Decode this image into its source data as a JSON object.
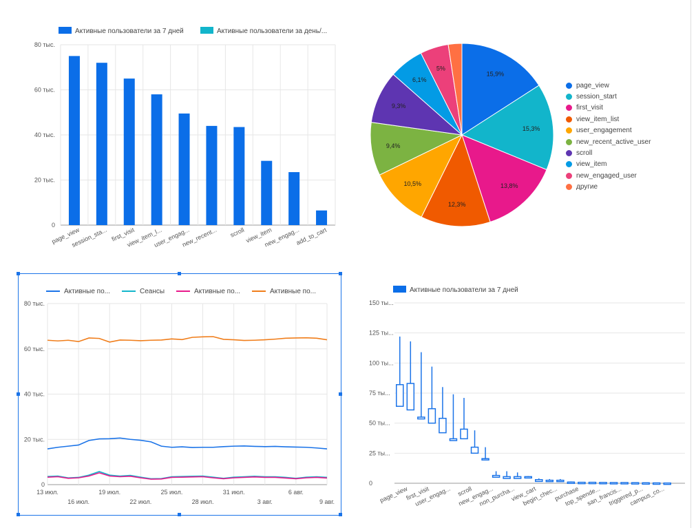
{
  "chart_data": [
    {
      "type": "bar",
      "legend": [
        "Активные пользователи за 7 дней",
        "Активные пользователи за день/..."
      ],
      "legend_colors": [
        "#0b6ee8",
        "#12b5cb"
      ],
      "categories": [
        "page_view",
        "session_sta...",
        "first_visit",
        "view_item_l...",
        "user_engag...",
        "new_recent...",
        "scroll",
        "view_item",
        "new_engag...",
        "add_to_cart"
      ],
      "series": [
        {
          "name": "Активные пользователи за 7 дней",
          "values": [
            75000,
            72000,
            65000,
            58000,
            49500,
            44000,
            43500,
            28500,
            23500,
            6500
          ]
        }
      ],
      "yticks": [
        "0",
        "20 тыс.",
        "40 тыс.",
        "60 тыс.",
        "80 тыс."
      ],
      "ylim": [
        0,
        80000
      ],
      "grid": true,
      "legend_position": "top"
    },
    {
      "type": "pie",
      "labels": [
        "page_view",
        "session_start",
        "first_visit",
        "view_item_list",
        "user_engagement",
        "new_recent_active_user",
        "scroll",
        "view_item",
        "new_engaged_user",
        "другие"
      ],
      "values": [
        15.9,
        15.3,
        13.8,
        12.3,
        10.5,
        9.4,
        9.3,
        6.1,
        5.0,
        2.4
      ],
      "slice_labels": [
        "15,9%",
        "15,3%",
        "13,8%",
        "12,3%",
        "10,5%",
        "9,4%",
        "9,3%",
        "6,1%",
        "5%",
        ""
      ],
      "colors": [
        "#0b6ee8",
        "#12b5cb",
        "#e8198b",
        "#f05a00",
        "#ffa600",
        "#7cb342",
        "#5e35b1",
        "#039be5",
        "#ec407a",
        "#ff7043"
      ],
      "legend_position": "right"
    },
    {
      "type": "line",
      "legend": [
        "Активные по...",
        "Сеансы",
        "Активные по...",
        "Активные по..."
      ],
      "x_ticks_top": [
        "13 июл.",
        "19 июл.",
        "25 июл.",
        "31 июл.",
        "6 авг."
      ],
      "x_ticks_bottom": [
        "16 июл.",
        "22 июл.",
        "28 июл.",
        "3 авг.",
        "9 авг."
      ],
      "x": [
        "13 июл.",
        "14 июл.",
        "15 июл.",
        "16 июл.",
        "17 июл.",
        "18 июл.",
        "19 июл.",
        "20 июл.",
        "21 июл.",
        "22 июл.",
        "23 июл.",
        "24 июл.",
        "25 июл.",
        "26 июл.",
        "27 июл.",
        "28 июл.",
        "29 июл.",
        "30 июл.",
        "31 июл.",
        "1 авг.",
        "2 авг.",
        "3 авг.",
        "4 авг.",
        "5 авг.",
        "6 авг.",
        "7 авг.",
        "8 авг.",
        "9 авг."
      ],
      "series": [
        {
          "color": "#1a73e8",
          "values": [
            15800,
            16500,
            17000,
            17500,
            19500,
            20200,
            20300,
            20600,
            20000,
            19600,
            18900,
            17000,
            16500,
            16700,
            16400,
            16500,
            16500,
            16800,
            17000,
            17100,
            16900,
            16800,
            16900,
            16700,
            16600,
            16500,
            16200,
            15800
          ]
        },
        {
          "color": "#12b5cb",
          "values": [
            3600,
            3800,
            3000,
            3200,
            4200,
            5800,
            4200,
            3800,
            4100,
            3300,
            2600,
            2700,
            3500,
            3600,
            3700,
            3800,
            3300,
            2800,
            3300,
            3500,
            3700,
            3500,
            3500,
            3200,
            2800,
            3300,
            3500,
            3200
          ]
        },
        {
          "color": "#e8198b",
          "values": [
            3300,
            3500,
            2800,
            3000,
            3800,
            5200,
            3800,
            3500,
            3700,
            3000,
            2400,
            2500,
            3200,
            3300,
            3400,
            3500,
            3000,
            2600,
            3000,
            3200,
            3400,
            3200,
            3200,
            2900,
            2600,
            3000,
            3200,
            2900
          ]
        },
        {
          "color": "#f07d1a",
          "values": [
            63800,
            63500,
            63800,
            63200,
            64800,
            64600,
            63000,
            63900,
            63800,
            63600,
            63800,
            63900,
            64400,
            64100,
            65100,
            65300,
            65400,
            64200,
            64000,
            63700,
            63800,
            64000,
            64300,
            64700,
            64800,
            64900,
            64700,
            64000
          ]
        }
      ],
      "yticks": [
        "0",
        "20 тыс.",
        "40 тыс.",
        "60 тыс.",
        "80 тыс."
      ],
      "ylim": [
        0,
        80000
      ],
      "grid": true,
      "legend_position": "top"
    },
    {
      "type": "candlestick",
      "legend": [
        "Активные пользователи за 7 дней"
      ],
      "legend_colors": [
        "#0b6ee8"
      ],
      "categories": [
        "page_view",
        "first_visit",
        "user_engag...",
        "scroll",
        "new_engag...",
        "non_purcha...",
        "view_cart",
        "begin_chec...",
        "purchase",
        "top_spende...",
        "san_francis...",
        "triggered_p...",
        "campus_co..."
      ],
      "boxes": [
        {
          "high": 122000,
          "q3": 82000,
          "q1": 64000,
          "low": 64000
        },
        {
          "high": 118000,
          "q3": 83000,
          "q1": 61000,
          "low": 61000
        },
        {
          "high": 109000,
          "q3": 55000,
          "q1": 53500,
          "low": 53500
        },
        {
          "high": 97000,
          "q3": 62000,
          "q1": 50000,
          "low": 50000
        },
        {
          "high": 80000,
          "q3": 54000,
          "q1": 42000,
          "low": 42000
        },
        {
          "high": 74000,
          "q3": 37000,
          "q1": 35500,
          "low": 35500
        },
        {
          "high": 71000,
          "q3": 45000,
          "q1": 37000,
          "low": 37000
        },
        {
          "high": 44000,
          "q3": 30000,
          "q1": 25000,
          "low": 25000
        },
        {
          "high": 30000,
          "q3": 20500,
          "q1": 19500,
          "low": 19500
        },
        {
          "high": 10000,
          "q3": 6500,
          "q1": 5000,
          "low": 5000
        },
        {
          "high": 10000,
          "q3": 5500,
          "q1": 4000,
          "low": 4000
        },
        {
          "high": 9000,
          "q3": 5500,
          "q1": 4000,
          "low": 4000
        },
        {
          "high": 6000,
          "q3": 5500,
          "q1": 4500,
          "low": 4500
        },
        {
          "high": 4000,
          "q3": 3000,
          "q1": 1500,
          "low": 1500
        },
        {
          "high": 3500,
          "q3": 2500,
          "q1": 1500,
          "low": 1500
        },
        {
          "high": 3500,
          "q3": 2500,
          "q1": 1500,
          "low": 1500
        },
        {
          "high": 1500,
          "q3": 1000,
          "q1": 500,
          "low": 500
        },
        {
          "high": 1000,
          "q3": 800,
          "q1": 400,
          "low": 400
        },
        {
          "high": 1000,
          "q3": 800,
          "q1": 400,
          "low": 400
        },
        {
          "high": 1000,
          "q3": 700,
          "q1": 300,
          "low": 300
        },
        {
          "high": 800,
          "q3": 600,
          "q1": 300,
          "low": 300
        },
        {
          "high": 800,
          "q3": 600,
          "q1": 300,
          "low": 300
        },
        {
          "high": 700,
          "q3": 500,
          "q1": 200,
          "low": 200
        },
        {
          "high": 500,
          "q3": 400,
          "q1": 200,
          "low": 200
        },
        {
          "high": 400,
          "q3": 300,
          "q1": 100,
          "low": 100
        },
        {
          "high": 300,
          "q3": 200,
          "q1": 100,
          "low": 100
        }
      ],
      "yticks": [
        "0",
        "25 ты...",
        "50 ты...",
        "75 ты...",
        "100 ты...",
        "125 ты...",
        "150 ты..."
      ],
      "ylim": [
        0,
        150000
      ],
      "grid": true,
      "legend_position": "top"
    }
  ]
}
